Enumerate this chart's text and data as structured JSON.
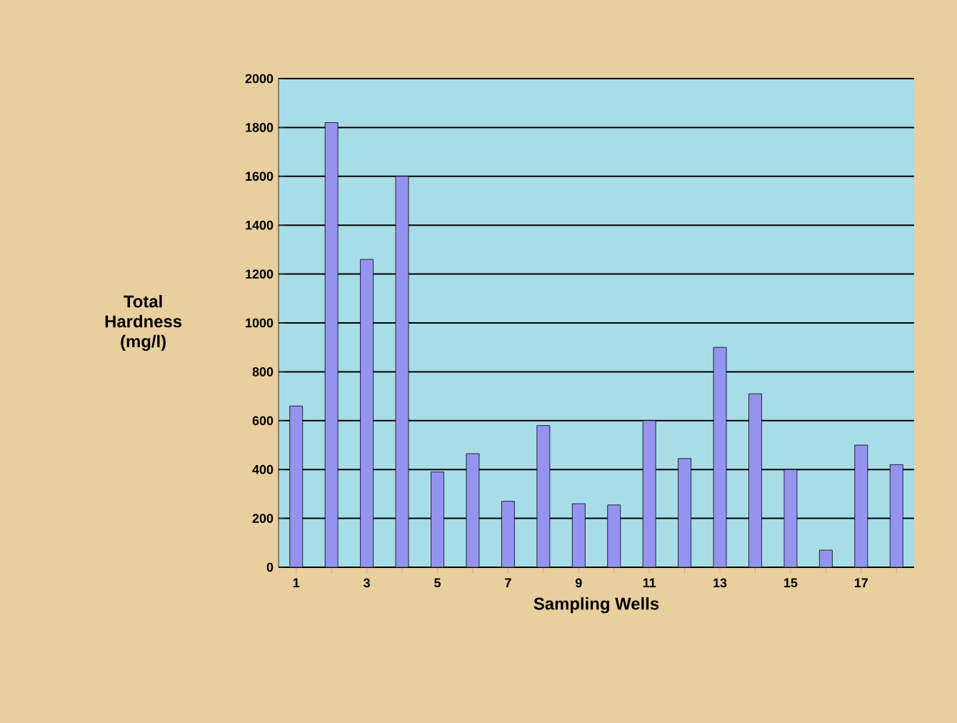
{
  "chart_data": {
    "type": "bar",
    "xlabel": "Sampling Wells",
    "ylabel": "Total Hardness (mg/l)",
    "categories": [
      "1",
      null,
      "3",
      null,
      "5",
      null,
      "7",
      null,
      "9",
      null,
      "11",
      null,
      "13",
      null,
      "15",
      null,
      "17",
      null
    ],
    "values": [
      660,
      1820,
      1260,
      1600,
      390,
      465,
      270,
      580,
      260,
      255,
      600,
      445,
      900,
      710,
      400,
      70,
      500,
      420
    ],
    "color": "#9494f0",
    "ylim": [
      0,
      2000
    ],
    "yticks": [
      0,
      200,
      400,
      600,
      800,
      1000,
      1200,
      1400,
      1600,
      1800,
      2000
    ],
    "grid": "y"
  }
}
